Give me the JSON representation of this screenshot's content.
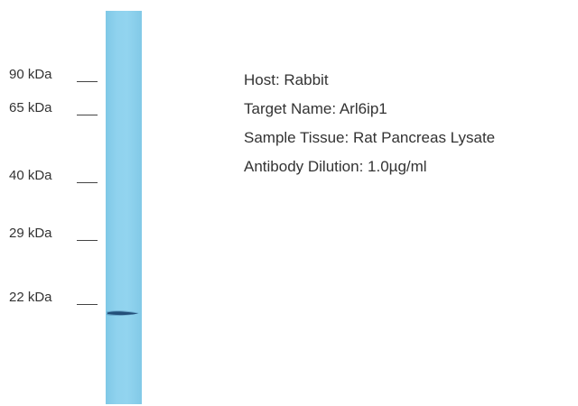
{
  "blot": {
    "lane_color": "#8fd2ee",
    "band_color": "#1a3f66",
    "band_marker": "22 kDa"
  },
  "markers": [
    {
      "label": "90 kDa"
    },
    {
      "label": "65 kDa"
    },
    {
      "label": "40 kDa"
    },
    {
      "label": "29 kDa"
    },
    {
      "label": "22 kDa"
    }
  ],
  "info": {
    "host": "Host: Rabbit",
    "target": "Target Name: Arl6ip1",
    "tissue": "Sample Tissue: Rat Pancreas Lysate",
    "dilution": "Antibody Dilution: 1.0µg/ml"
  }
}
